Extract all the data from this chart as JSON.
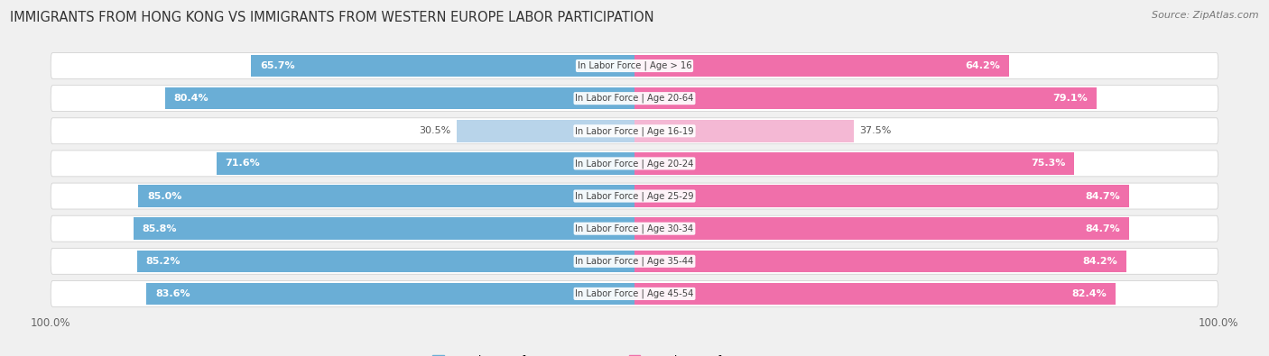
{
  "title": "IMMIGRANTS FROM HONG KONG VS IMMIGRANTS FROM WESTERN EUROPE LABOR PARTICIPATION",
  "source": "Source: ZipAtlas.com",
  "categories": [
    "In Labor Force | Age > 16",
    "In Labor Force | Age 20-64",
    "In Labor Force | Age 16-19",
    "In Labor Force | Age 20-24",
    "In Labor Force | Age 25-29",
    "In Labor Force | Age 30-34",
    "In Labor Force | Age 35-44",
    "In Labor Force | Age 45-54"
  ],
  "hk_values": [
    65.7,
    80.4,
    30.5,
    71.6,
    85.0,
    85.8,
    85.2,
    83.6
  ],
  "we_values": [
    64.2,
    79.1,
    37.5,
    75.3,
    84.7,
    84.7,
    84.2,
    82.4
  ],
  "hk_color": "#6aaed6",
  "we_color": "#f06faa",
  "hk_color_light": "#b8d4ea",
  "we_color_light": "#f4b8d4",
  "bar_height": 0.68,
  "bg_color": "#f0f0f0",
  "title_fontsize": 10.5,
  "legend_label_hk": "Immigrants from Hong Kong",
  "legend_label_we": "Immigrants from Western Europe",
  "max_val": 100.0,
  "threshold": 50
}
